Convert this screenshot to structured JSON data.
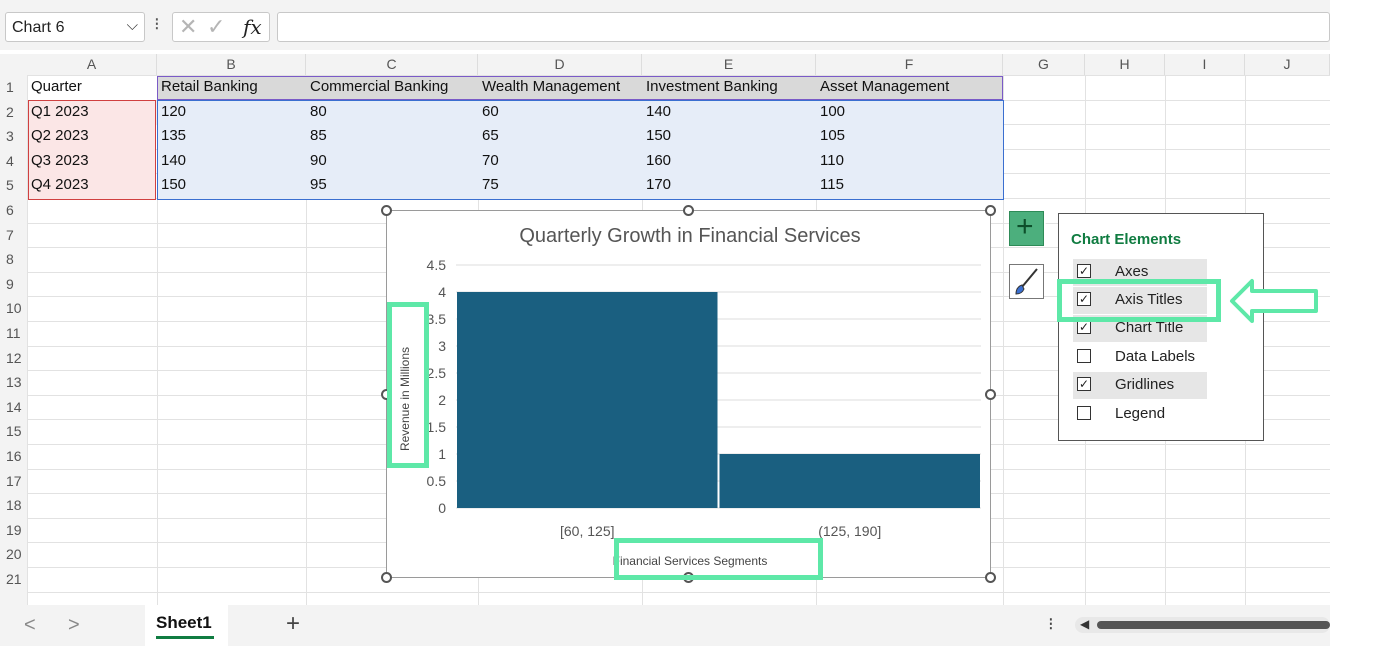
{
  "formula_bar": {
    "name_box": "Chart 6",
    "fx": "fx",
    "formula": ""
  },
  "columns": [
    "A",
    "B",
    "C",
    "D",
    "E",
    "F",
    "G",
    "H",
    "I",
    "J"
  ],
  "rows": [
    "1",
    "2",
    "3",
    "4",
    "5",
    "6",
    "7",
    "8",
    "9",
    "10",
    "11",
    "12",
    "13",
    "14",
    "15",
    "16",
    "17",
    "18",
    "19",
    "20",
    "21"
  ],
  "table": {
    "headers": [
      "Quarter",
      "Retail Banking",
      "Commercial Banking",
      "Wealth Management",
      "Investment Banking",
      "Asset Management"
    ],
    "data": [
      [
        "Q1 2023",
        "120",
        "80",
        "60",
        "140",
        "100"
      ],
      [
        "Q2 2023",
        "135",
        "85",
        "65",
        "150",
        "105"
      ],
      [
        "Q3 2023",
        "140",
        "90",
        "70",
        "160",
        "110"
      ],
      [
        "Q4 2023",
        "150",
        "95",
        "75",
        "170",
        "115"
      ]
    ]
  },
  "chart_data": {
    "type": "bar",
    "title": "Quarterly Growth in Financial Services",
    "xlabel": "Financial Services Segments",
    "ylabel": "Revenue in Millions",
    "categories": [
      "[60, 125]",
      "(125, 190]"
    ],
    "values": [
      4,
      1
    ],
    "ylim": [
      0,
      4.5
    ],
    "yticks": [
      "0",
      "0.5",
      "1",
      "1.5",
      "2",
      "2.5",
      "3",
      "3.5",
      "4",
      "4.5"
    ],
    "grid": true,
    "bar_color": "#1a5f80"
  },
  "chart_elements_panel": {
    "title": "Chart Elements",
    "options": [
      {
        "label": "Axes",
        "checked": true
      },
      {
        "label": "Axis Titles",
        "checked": true
      },
      {
        "label": "Chart Title",
        "checked": true
      },
      {
        "label": "Data Labels",
        "checked": false
      },
      {
        "label": "Gridlines",
        "checked": true
      },
      {
        "label": "Legend",
        "checked": false
      }
    ]
  },
  "sheet_tabs": {
    "active": "Sheet1",
    "add": "+",
    "nav_prev": "<",
    "nav_next": ">"
  },
  "colors": {
    "accent_green": "#107c41",
    "highlight": "#5ee8a8",
    "bar": "#1a5f80"
  }
}
